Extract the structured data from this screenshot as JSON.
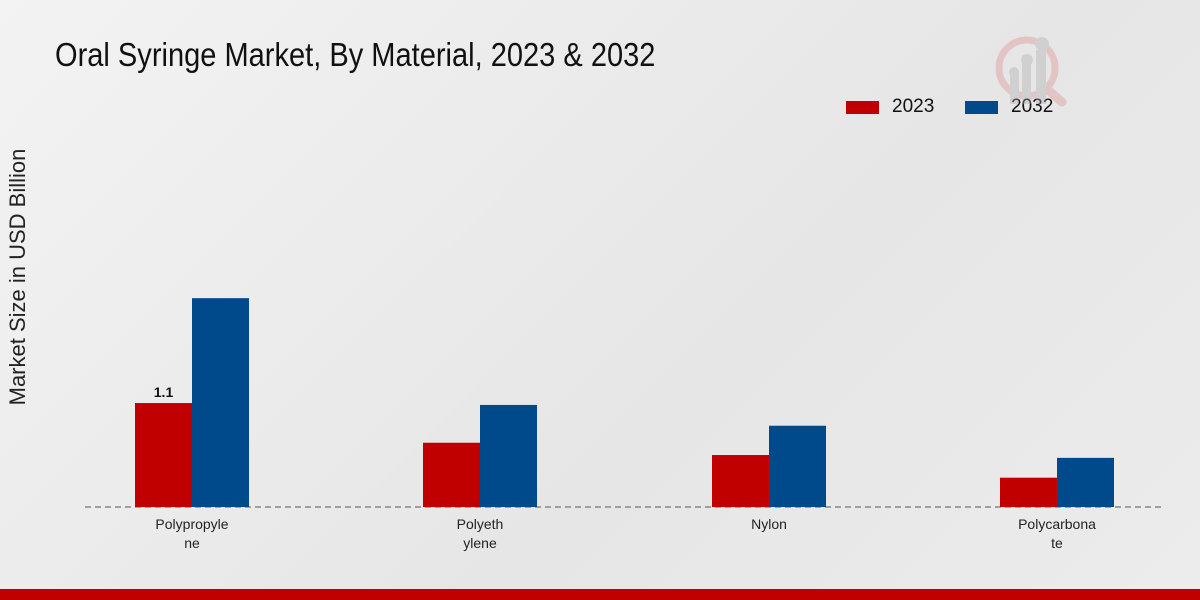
{
  "chart_data": {
    "type": "bar",
    "title": "Oral Syringe Market, By Material, 2023 & 2032",
    "xlabel": "",
    "ylabel": "Market Size in USD Billion",
    "categories": [
      [
        "Polypropyle",
        "ne"
      ],
      [
        "Polyeth",
        "ylene"
      ],
      [
        "Nylon"
      ],
      [
        "Polycarbona",
        "te"
      ]
    ],
    "series": [
      {
        "name": "2023",
        "color": "#c00000",
        "values": [
          1.1,
          0.68,
          0.55,
          0.31
        ]
      },
      {
        "name": "2032",
        "color": "#004a8c",
        "values": [
          2.21,
          1.08,
          0.86,
          0.52
        ]
      }
    ],
    "data_labels": [
      {
        "series": 0,
        "index": 0,
        "text": "1.1"
      }
    ],
    "legend_position": "top-right",
    "grid": false
  }
}
